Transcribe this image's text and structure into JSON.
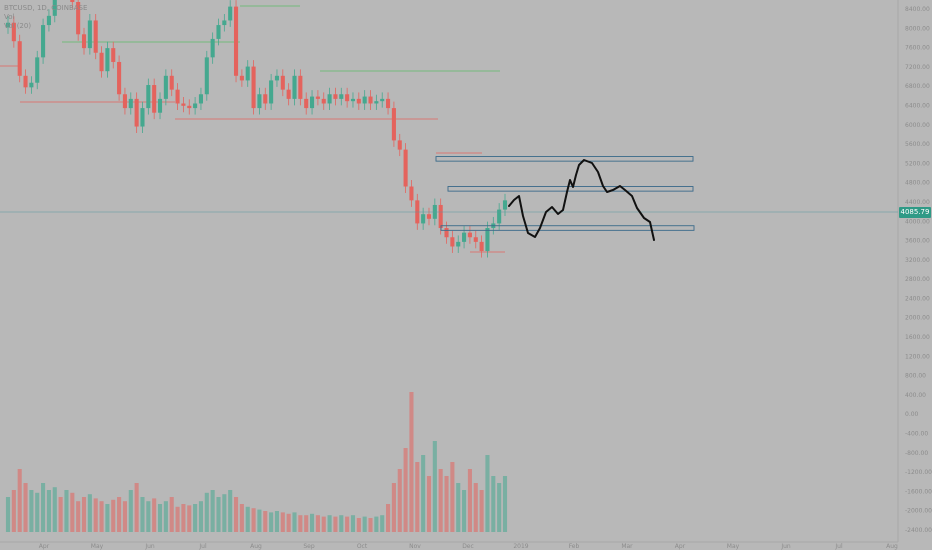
{
  "legend": {
    "line1": "BTCUSD, 1D, COINBASE",
    "line2": "Vol",
    "line3": "Vol (20)"
  },
  "current_price": "4085.79",
  "colors": {
    "background": "#b8b8b8",
    "up": "#45a88f",
    "down": "#e4635d",
    "level_line": "#e07070",
    "drawn_path": "#111111",
    "zone_border": "#3a6a8a",
    "price_line": "#5a9aa0"
  },
  "chart_data": {
    "type": "candlestick",
    "x_axis_labels": [
      "Apr",
      "May",
      "Jun",
      "Jul",
      "Aug",
      "Sep",
      "Oct",
      "Nov",
      "Dec",
      "2019",
      "Feb",
      "Mar",
      "Apr",
      "May",
      "Jun",
      "Jul",
      "Aug"
    ],
    "y_axis_labels": [
      "8400.00",
      "8000.00",
      "7600.00",
      "7200.00",
      "6800.00",
      "6400.00",
      "6000.00",
      "5600.00",
      "5200.00",
      "4800.00",
      "4400.00",
      "4000.00",
      "3600.00",
      "3200.00",
      "2800.00",
      "2400.00",
      "2000.00",
      "1600.00",
      "1200.00",
      "800.00",
      "400.00",
      "0.00",
      "-400.00",
      "-800.00",
      "-1200.00",
      "-1600.00",
      "-2000.00",
      "-2400.00"
    ],
    "price_range": [
      2400,
      8600
    ],
    "zones": [
      {
        "low": 5150,
        "high": 5250
      },
      {
        "low": 4500,
        "high": 4600
      },
      {
        "low": 3650,
        "high": 3750
      }
    ],
    "closes": [
      8150,
      7750,
      7000,
      6750,
      6850,
      7400,
      8100,
      8300,
      9000,
      8800,
      9200,
      8600,
      7900,
      7600,
      8200,
      7500,
      7100,
      7600,
      7300,
      6600,
      6300,
      6500,
      5900,
      6300,
      6800,
      6200,
      6500,
      7000,
      6700,
      6400,
      6350,
      6300,
      6400,
      6600,
      7400,
      7800,
      8100,
      8200,
      8500,
      7000,
      6900,
      7200,
      6300,
      6600,
      6400,
      6900,
      7000,
      6700,
      6500,
      7000,
      6500,
      6300,
      6550,
      6500,
      6400,
      6600,
      6500,
      6600,
      6450,
      6500,
      6400,
      6550,
      6400,
      6450,
      6500,
      6300,
      5600,
      5400,
      4600,
      4300,
      3800,
      4000,
      3900,
      4200,
      3700,
      3500,
      3300,
      3400,
      3600,
      3500,
      3400,
      3200,
      3700,
      3800,
      4100,
      4300
    ],
    "volume_relative": [
      0.25,
      0.3,
      0.45,
      0.35,
      0.3,
      0.28,
      0.35,
      0.3,
      0.32,
      0.25,
      0.3,
      0.28,
      0.22,
      0.25,
      0.27,
      0.24,
      0.22,
      0.2,
      0.23,
      0.25,
      0.22,
      0.3,
      0.35,
      0.25,
      0.22,
      0.24,
      0.2,
      0.22,
      0.25,
      0.18,
      0.2,
      0.19,
      0.2,
      0.22,
      0.28,
      0.3,
      0.25,
      0.27,
      0.3,
      0.25,
      0.2,
      0.18,
      0.17,
      0.16,
      0.15,
      0.14,
      0.15,
      0.14,
      0.13,
      0.14,
      0.12,
      0.12,
      0.13,
      0.12,
      0.11,
      0.12,
      0.11,
      0.12,
      0.11,
      0.12,
      0.1,
      0.11,
      0.1,
      0.11,
      0.12,
      0.2,
      0.35,
      0.45,
      0.6,
      1.0,
      0.5,
      0.55,
      0.4,
      0.65,
      0.45,
      0.4,
      0.5,
      0.35,
      0.3,
      0.45,
      0.35,
      0.3,
      0.55,
      0.4,
      0.35,
      0.4
    ]
  }
}
